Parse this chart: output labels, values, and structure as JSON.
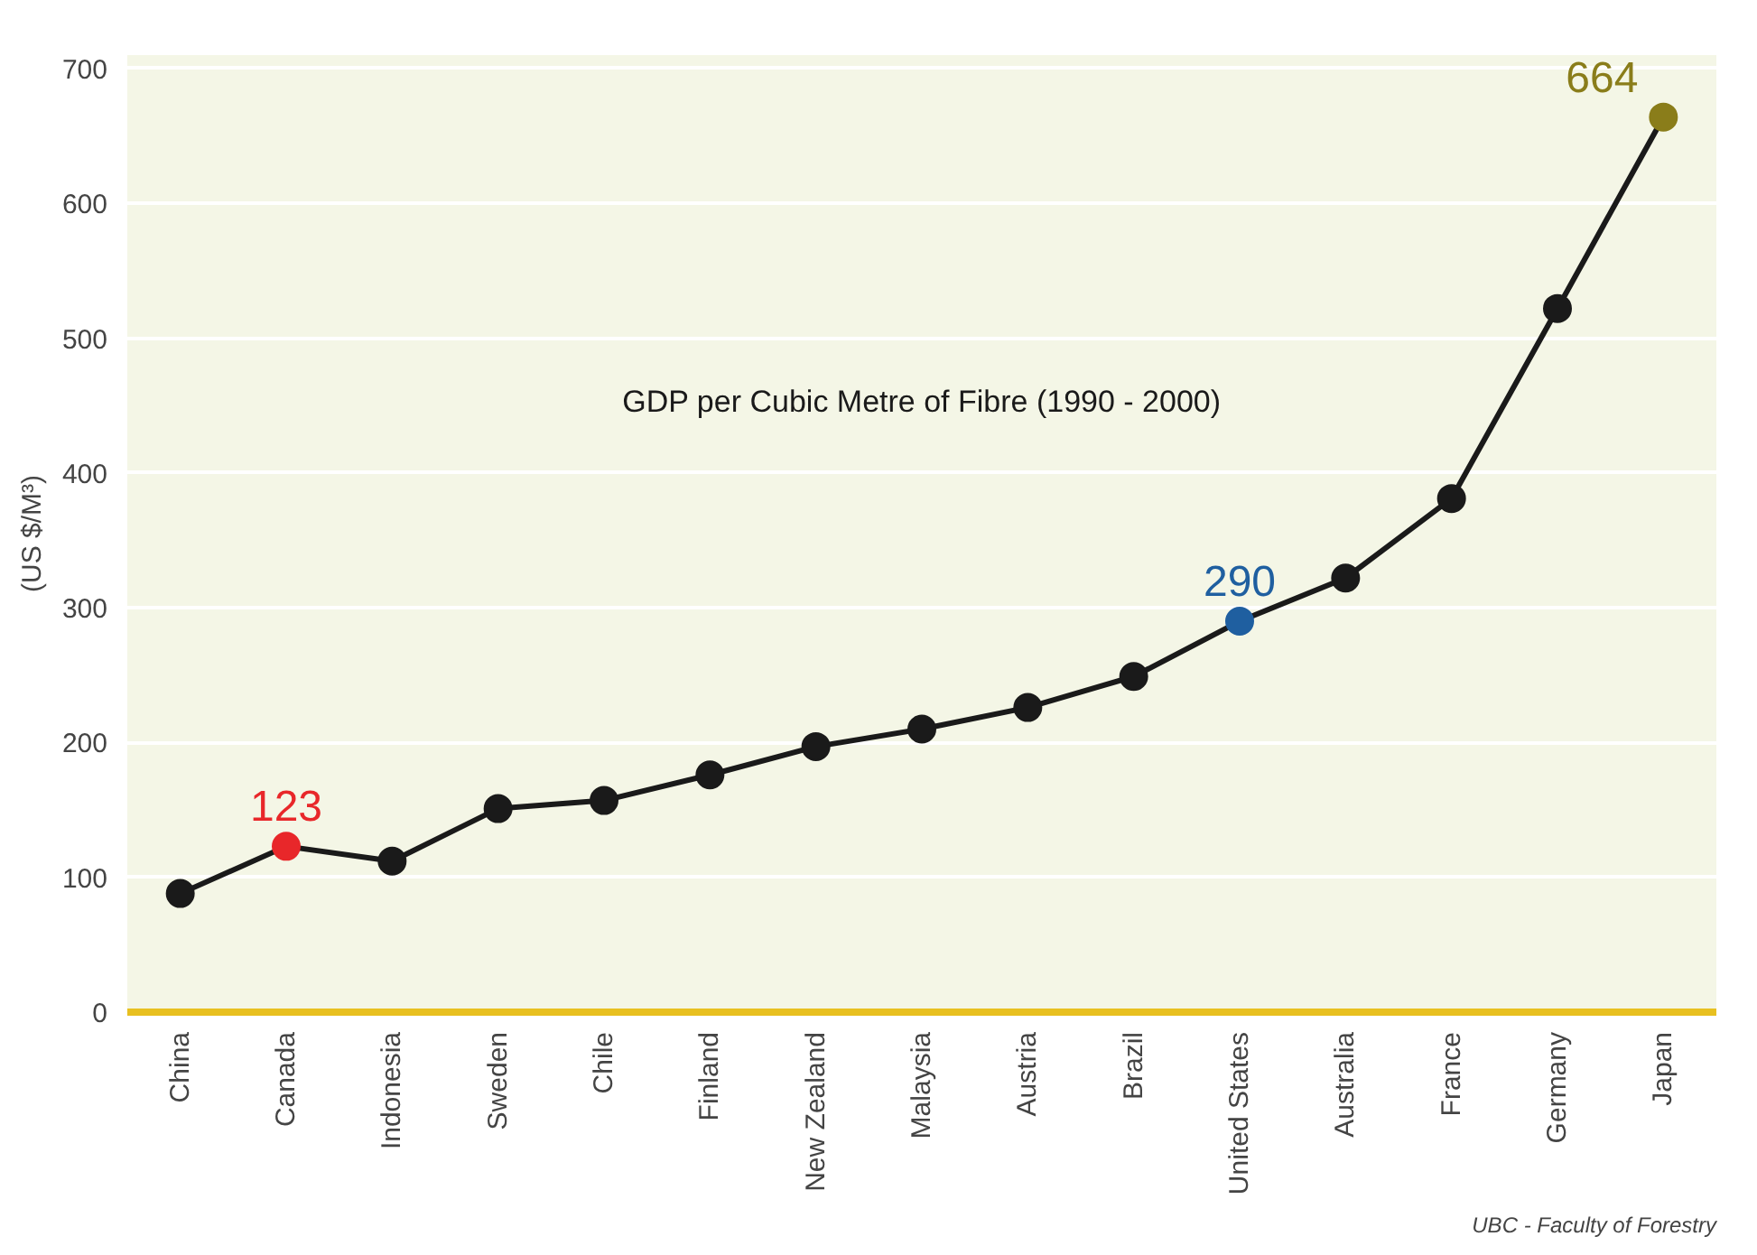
{
  "chart_data": {
    "type": "line",
    "title": "GDP per Cubic Metre of Fibre (1990 - 2000)",
    "ylabel": "(US $/M³)",
    "categories": [
      "China",
      "Canada",
      "Indonesia",
      "Sweden",
      "Chile",
      "Finland",
      "New Zealand",
      "Malaysia",
      "Austria",
      "Brazil",
      "United States",
      "Australia",
      "France",
      "Germany",
      "Japan"
    ],
    "values": [
      88,
      123,
      112,
      151,
      157,
      176,
      197,
      210,
      226,
      249,
      290,
      322,
      381,
      522,
      664
    ],
    "color": "#1a1a1a",
    "colors": [
      "#1a1a1a",
      "#e8272a",
      "#1a1a1a",
      "#1a1a1a",
      "#1a1a1a",
      "#1a1a1a",
      "#1a1a1a",
      "#1a1a1a",
      "#1a1a1a",
      "#1a1a1a",
      "#1f5fa0",
      "#1a1a1a",
      "#1a1a1a",
      "#1a1a1a",
      "#8a7d1a"
    ],
    "value_labels": [
      null,
      "123",
      null,
      null,
      null,
      null,
      null,
      null,
      null,
      null,
      "290",
      null,
      null,
      null,
      "664"
    ],
    "ylim": [
      0,
      710
    ],
    "yticks": [
      0,
      100,
      200,
      300,
      400,
      500,
      600,
      700
    ],
    "grid": "y",
    "marker": "circle",
    "line_style": "solid",
    "annotations": [
      "UBC - Faculty of Forestry"
    ]
  }
}
